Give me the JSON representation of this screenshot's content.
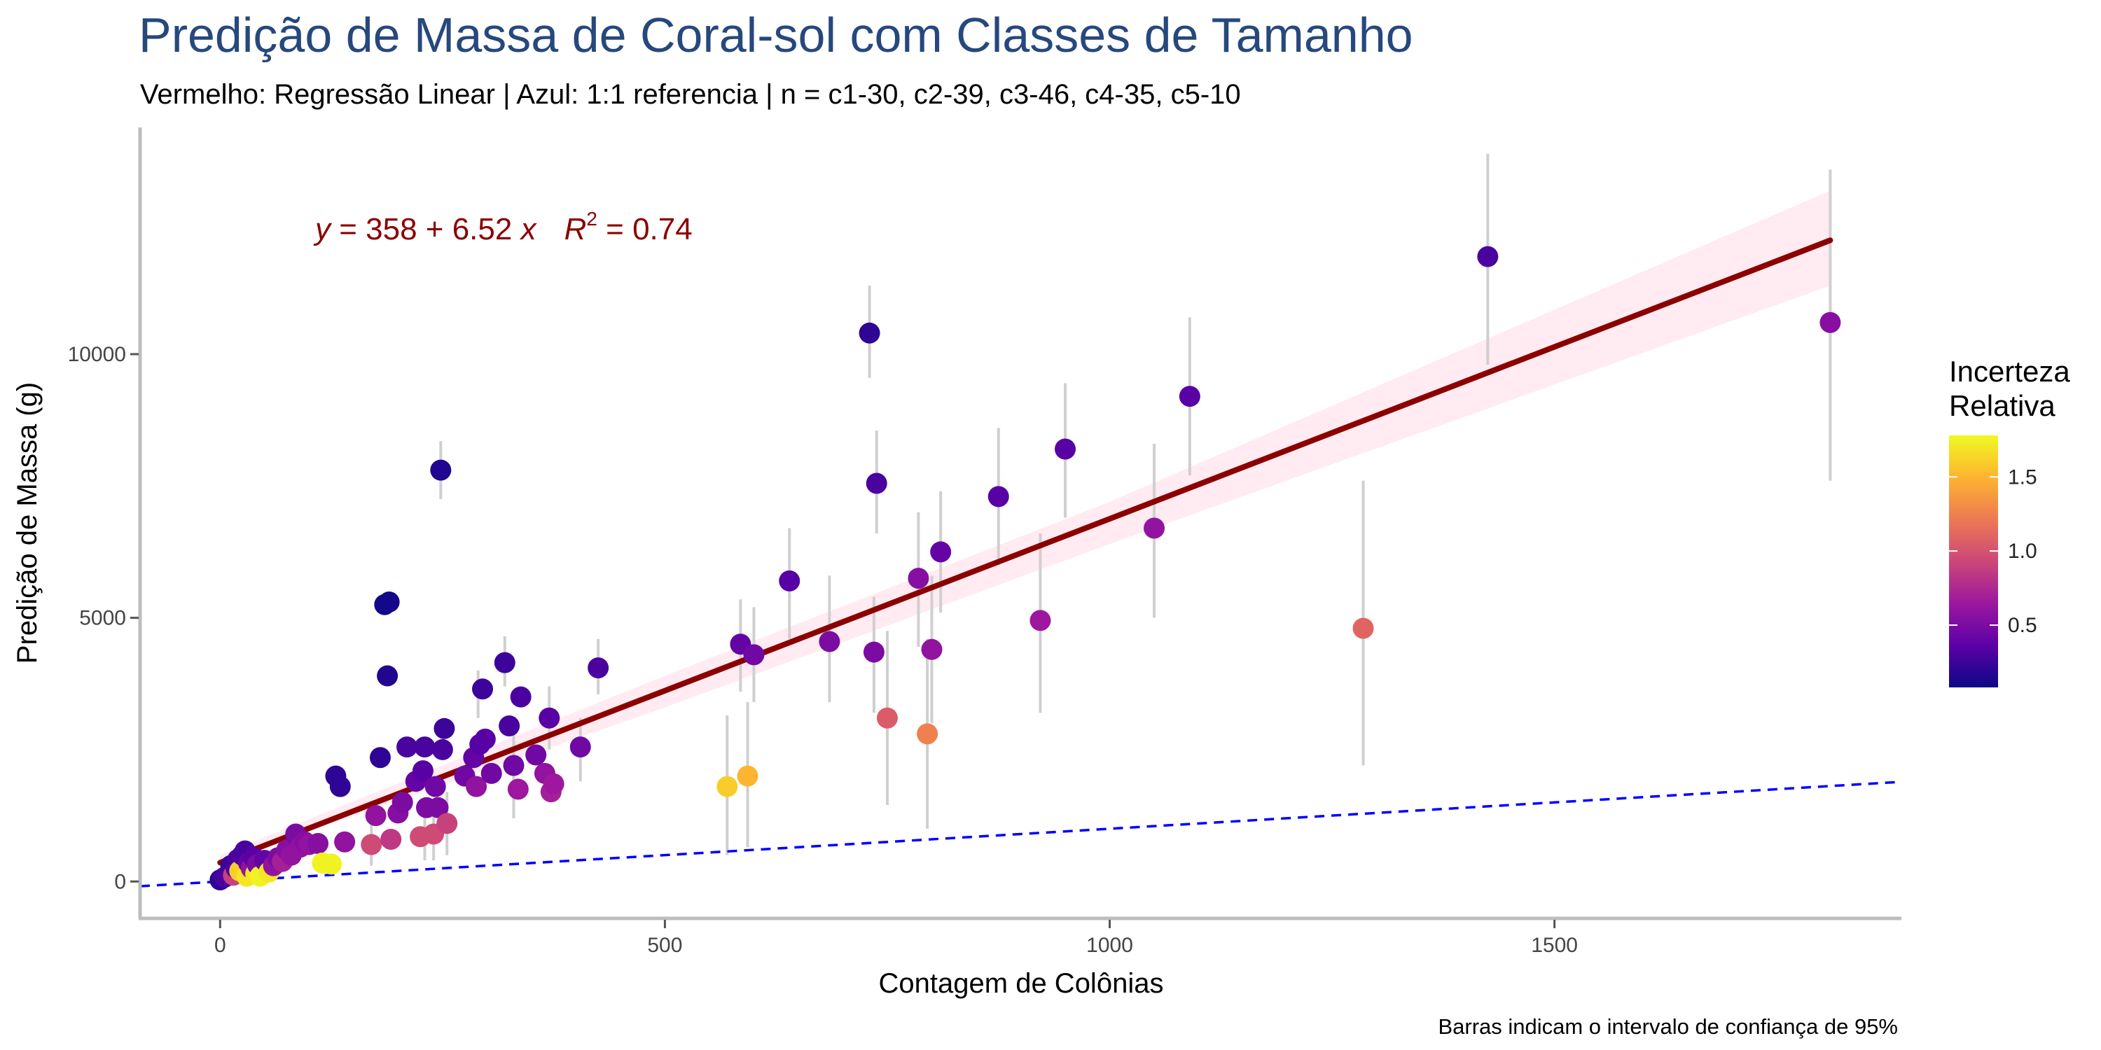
{
  "chart_data": {
    "type": "scatter",
    "title": "Predição de Massa de Coral-sol com Classes de Tamanho",
    "subtitle": "Vermelho: Regressão Linear | Azul: 1:1 referencia | n = c1-30, c2-39, c3-46, c4-35, c5-10",
    "xlabel": "Contagem de Colônias",
    "ylabel": "Predição de Massa (g)",
    "caption": "Barras indicam o intervalo de confiança de  95%",
    "xlim": [
      -90,
      1890
    ],
    "ylim": [
      -700,
      14300
    ],
    "x_ticks": [
      0,
      500,
      1000,
      1500
    ],
    "y_ticks": [
      0,
      5000,
      10000
    ],
    "x_tick_labels": [
      "0",
      "500",
      "1000",
      "1500"
    ],
    "y_tick_labels": [
      "0",
      "5000",
      "10000"
    ],
    "grid": false,
    "equation": {
      "prefix_y": "y",
      "formula": " = 358 + 6.52 ",
      "var_x": "x",
      "r_symbol": "R",
      "r_exponent": "2",
      "r_value": " = 0.74"
    },
    "regression": {
      "intercept": 358,
      "slope": 6.52,
      "x_range": [
        0,
        1810
      ],
      "ci_band": [
        [
          0,
          360,
          500
        ],
        [
          500,
          3300,
          3900
        ],
        [
          1000,
          6400,
          7200
        ],
        [
          1810,
          11300,
          13100
        ]
      ]
    },
    "reference_line": {
      "slope": 1,
      "intercept": 0
    },
    "colors": {
      "regression": "#8b0000",
      "ci_band": "#ffe4ec",
      "reference": "#0000ff",
      "error_bar": "#cfcfcf",
      "title": "#26487d"
    },
    "legend": {
      "title_lines": [
        "Incerteza",
        "Relativa"
      ],
      "ticks": [
        0.5,
        1.0,
        1.5
      ],
      "tick_labels": [
        "0.5",
        "1.0",
        "1.5"
      ],
      "range": [
        0.08,
        1.78
      ],
      "placement": "right",
      "palette": [
        "#0d0887",
        "#5c01a6",
        "#9c179e",
        "#cc4778",
        "#ed7953",
        "#fdb42f",
        "#f0f921"
      ]
    },
    "points": [
      {
        "x": 0,
        "y": 30,
        "u": 0.2
      },
      {
        "x": 5,
        "y": 80,
        "u": 0.3
      },
      {
        "x": 10,
        "y": 150,
        "u": 0.3
      },
      {
        "x": 12,
        "y": 300,
        "u": 0.25
      },
      {
        "x": 15,
        "y": 120,
        "u": 0.9
      },
      {
        "x": 18,
        "y": 250,
        "u": 0.3
      },
      {
        "x": 20,
        "y": 420,
        "u": 0.3
      },
      {
        "x": 22,
        "y": 200,
        "u": 1.6
      },
      {
        "x": 25,
        "y": 500,
        "u": 0.3
      },
      {
        "x": 28,
        "y": 580,
        "u": 0.3
      },
      {
        "x": 30,
        "y": 100,
        "u": 1.7
      },
      {
        "x": 32,
        "y": 350,
        "u": 0.4
      },
      {
        "x": 35,
        "y": 250,
        "u": 0.6
      },
      {
        "x": 38,
        "y": 450,
        "u": 0.35
      },
      {
        "x": 40,
        "y": 150,
        "u": 1.7
      },
      {
        "x": 42,
        "y": 320,
        "u": 0.5
      },
      {
        "x": 45,
        "y": 100,
        "u": 1.75
      },
      {
        "x": 50,
        "y": 400,
        "u": 0.4
      },
      {
        "x": 55,
        "y": 180,
        "u": 1.7
      },
      {
        "x": 60,
        "y": 300,
        "u": 0.6
      },
      {
        "x": 65,
        "y": 450,
        "u": 0.5
      },
      {
        "x": 70,
        "y": 380,
        "u": 0.7
      },
      {
        "x": 75,
        "y": 600,
        "u": 0.55
      },
      {
        "x": 80,
        "y": 500,
        "u": 0.6
      },
      {
        "x": 85,
        "y": 900,
        "u": 0.5
      },
      {
        "x": 90,
        "y": 650,
        "u": 0.6
      },
      {
        "x": 95,
        "y": 750,
        "u": 0.55
      },
      {
        "x": 100,
        "y": 700,
        "u": 0.6
      },
      {
        "x": 110,
        "y": 720,
        "u": 0.55
      },
      {
        "x": 115,
        "y": 350,
        "u": 1.75
      },
      {
        "x": 125,
        "y": 330,
        "u": 1.75
      },
      {
        "x": 130,
        "y": 2000,
        "u": 0.2
      },
      {
        "x": 135,
        "y": 1800,
        "u": 0.2
      },
      {
        "x": 140,
        "y": 750,
        "u": 0.6
      },
      {
        "x": 170,
        "y": 700,
        "u": 0.95
      },
      {
        "x": 175,
        "y": 1250,
        "u": 0.6
      },
      {
        "x": 180,
        "y": 2350,
        "u": 0.2
      },
      {
        "x": 185,
        "y": 5250,
        "u": 0.1
      },
      {
        "x": 188,
        "y": 3900,
        "u": 0.15
      },
      {
        "x": 190,
        "y": 5300,
        "u": 0.1
      },
      {
        "x": 192,
        "y": 800,
        "u": 0.85
      },
      {
        "x": 200,
        "y": 1300,
        "u": 0.55
      },
      {
        "x": 205,
        "y": 1500,
        "u": 0.5
      },
      {
        "x": 210,
        "y": 2550,
        "u": 0.3
      },
      {
        "x": 220,
        "y": 1900,
        "u": 0.4
      },
      {
        "x": 225,
        "y": 850,
        "u": 0.95
      },
      {
        "x": 228,
        "y": 2100,
        "u": 0.35
      },
      {
        "x": 230,
        "y": 2550,
        "u": 0.3
      },
      {
        "x": 232,
        "y": 1400,
        "u": 0.5
      },
      {
        "x": 240,
        "y": 900,
        "u": 0.95
      },
      {
        "x": 242,
        "y": 1800,
        "u": 0.45
      },
      {
        "x": 245,
        "y": 1400,
        "u": 0.5
      },
      {
        "x": 248,
        "y": 7800,
        "u": 0.15
      },
      {
        "x": 250,
        "y": 2500,
        "u": 0.3
      },
      {
        "x": 252,
        "y": 2900,
        "u": 0.25
      },
      {
        "x": 255,
        "y": 1100,
        "u": 0.9
      },
      {
        "x": 275,
        "y": 2000,
        "u": 0.45
      },
      {
        "x": 285,
        "y": 2350,
        "u": 0.4
      },
      {
        "x": 288,
        "y": 1800,
        "u": 0.6
      },
      {
        "x": 292,
        "y": 2600,
        "u": 0.35
      },
      {
        "x": 295,
        "y": 3650,
        "u": 0.25
      },
      {
        "x": 298,
        "y": 2700,
        "u": 0.35
      },
      {
        "x": 305,
        "y": 2050,
        "u": 0.45
      },
      {
        "x": 320,
        "y": 4150,
        "u": 0.25
      },
      {
        "x": 325,
        "y": 2950,
        "u": 0.3
      },
      {
        "x": 330,
        "y": 2200,
        "u": 0.45
      },
      {
        "x": 335,
        "y": 1750,
        "u": 0.65
      },
      {
        "x": 338,
        "y": 3500,
        "u": 0.3
      },
      {
        "x": 355,
        "y": 2400,
        "u": 0.45
      },
      {
        "x": 365,
        "y": 2050,
        "u": 0.6
      },
      {
        "x": 370,
        "y": 3100,
        "u": 0.35
      },
      {
        "x": 372,
        "y": 1700,
        "u": 0.7
      },
      {
        "x": 375,
        "y": 1850,
        "u": 0.65
      },
      {
        "x": 405,
        "y": 2550,
        "u": 0.45
      },
      {
        "x": 425,
        "y": 4050,
        "u": 0.3
      },
      {
        "x": 570,
        "y": 1800,
        "u": 1.6
      },
      {
        "x": 585,
        "y": 4500,
        "u": 0.4
      },
      {
        "x": 593,
        "y": 2000,
        "u": 1.5
      },
      {
        "x": 600,
        "y": 4300,
        "u": 0.45
      },
      {
        "x": 640,
        "y": 5700,
        "u": 0.35
      },
      {
        "x": 685,
        "y": 4550,
        "u": 0.5
      },
      {
        "x": 730,
        "y": 10400,
        "u": 0.2
      },
      {
        "x": 735,
        "y": 4350,
        "u": 0.5
      },
      {
        "x": 738,
        "y": 7550,
        "u": 0.3
      },
      {
        "x": 750,
        "y": 3100,
        "u": 1.05
      },
      {
        "x": 785,
        "y": 5750,
        "u": 0.55
      },
      {
        "x": 795,
        "y": 2800,
        "u": 1.25
      },
      {
        "x": 800,
        "y": 4400,
        "u": 0.6
      },
      {
        "x": 810,
        "y": 6250,
        "u": 0.4
      },
      {
        "x": 875,
        "y": 7300,
        "u": 0.35
      },
      {
        "x": 922,
        "y": 4950,
        "u": 0.65
      },
      {
        "x": 950,
        "y": 8200,
        "u": 0.35
      },
      {
        "x": 1050,
        "y": 6700,
        "u": 0.6
      },
      {
        "x": 1090,
        "y": 9200,
        "u": 0.35
      },
      {
        "x": 1285,
        "y": 4800,
        "u": 1.1
      },
      {
        "x": 1425,
        "y": 11850,
        "u": 0.3
      },
      {
        "x": 1810,
        "y": 10600,
        "u": 0.55
      }
    ],
    "error_bars": [
      {
        "x": 248,
        "lo": 7250,
        "hi": 8350
      },
      {
        "x": 320,
        "lo": 3700,
        "hi": 4650
      },
      {
        "x": 425,
        "lo": 3550,
        "hi": 4600
      },
      {
        "x": 585,
        "lo": 3600,
        "hi": 5350
      },
      {
        "x": 570,
        "lo": 500,
        "hi": 3150
      },
      {
        "x": 593,
        "lo": 650,
        "hi": 3400
      },
      {
        "x": 600,
        "lo": 3400,
        "hi": 5200
      },
      {
        "x": 640,
        "lo": 4600,
        "hi": 6700
      },
      {
        "x": 685,
        "lo": 3400,
        "hi": 5800
      },
      {
        "x": 730,
        "lo": 9550,
        "hi": 11300
      },
      {
        "x": 735,
        "lo": 3200,
        "hi": 5400
      },
      {
        "x": 738,
        "lo": 6600,
        "hi": 8550
      },
      {
        "x": 750,
        "lo": 1450,
        "hi": 4750
      },
      {
        "x": 785,
        "lo": 4450,
        "hi": 7000
      },
      {
        "x": 795,
        "lo": 1000,
        "hi": 4600
      },
      {
        "x": 800,
        "lo": 3000,
        "hi": 5800
      },
      {
        "x": 810,
        "lo": 5100,
        "hi": 7400
      },
      {
        "x": 875,
        "lo": 6000,
        "hi": 8600
      },
      {
        "x": 922,
        "lo": 3200,
        "hi": 6600
      },
      {
        "x": 950,
        "lo": 6900,
        "hi": 9450
      },
      {
        "x": 1050,
        "lo": 5000,
        "hi": 8300
      },
      {
        "x": 1090,
        "lo": 7700,
        "hi": 10700
      },
      {
        "x": 1285,
        "lo": 2200,
        "hi": 7600
      },
      {
        "x": 1425,
        "lo": 9800,
        "hi": 13800
      },
      {
        "x": 1810,
        "lo": 7600,
        "hi": 13500
      },
      {
        "x": 290,
        "lo": 3100,
        "hi": 4000
      },
      {
        "x": 330,
        "lo": 1200,
        "hi": 2900
      },
      {
        "x": 370,
        "lo": 2500,
        "hi": 3700
      },
      {
        "x": 405,
        "lo": 1900,
        "hi": 3100
      },
      {
        "x": 230,
        "lo": 400,
        "hi": 1400
      },
      {
        "x": 240,
        "lo": 400,
        "hi": 1400
      },
      {
        "x": 255,
        "lo": 500,
        "hi": 1700
      },
      {
        "x": 170,
        "lo": 300,
        "hi": 1100
      }
    ]
  }
}
